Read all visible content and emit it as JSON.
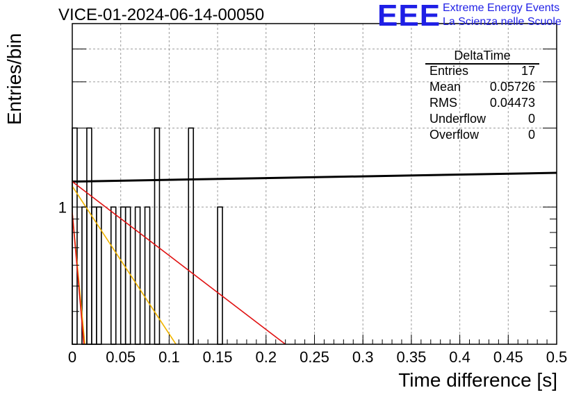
{
  "title": "VICE-01-2024-06-14-00050",
  "logo": {
    "mark": "EEE",
    "line1": "Extreme Energy Events",
    "line2": "La Scienza nelle Scuole",
    "color": "#1f1fe6"
  },
  "stats": {
    "title": "DeltaTime",
    "rows": [
      {
        "label": "Entries",
        "value": "17"
      },
      {
        "label": "Mean",
        "value": "0.05726"
      },
      {
        "label": "RMS",
        "value": "0.04473"
      },
      {
        "label": "Underflow",
        "value": "0"
      },
      {
        "label": "Overflow",
        "value": "0"
      }
    ]
  },
  "chart_data": {
    "type": "bar",
    "title": "VICE-01-2024-06-14-00050",
    "xlabel": "Time difference [s]",
    "ylabel": "Entries/bin",
    "xlim": [
      0,
      0.5
    ],
    "ylim": [
      0.3,
      5
    ],
    "yscale": "log",
    "grid": true,
    "xticks": [
      "0",
      "0.05",
      "0.1",
      "0.15",
      "0.2",
      "0.25",
      "0.3",
      "0.35",
      "0.4",
      "0.45",
      "0.5"
    ],
    "yticks": [
      "1"
    ],
    "bin_width": 0.005,
    "bins": [
      {
        "x": 0.0025,
        "count": 2
      },
      {
        "x": 0.0125,
        "count": 1
      },
      {
        "x": 0.0175,
        "count": 2
      },
      {
        "x": 0.0225,
        "count": 1
      },
      {
        "x": 0.0275,
        "count": 1
      },
      {
        "x": 0.0425,
        "count": 1
      },
      {
        "x": 0.0525,
        "count": 1
      },
      {
        "x": 0.0575,
        "count": 1
      },
      {
        "x": 0.0675,
        "count": 1
      },
      {
        "x": 0.0775,
        "count": 1
      },
      {
        "x": 0.0875,
        "count": 2
      },
      {
        "x": 0.1225,
        "count": 2
      },
      {
        "x": 0.1525,
        "count": 1
      }
    ],
    "fit_lines": [
      {
        "color": "#000000",
        "points": [
          [
            0.0,
            1.25
          ],
          [
            0.5,
            1.35
          ]
        ]
      },
      {
        "color": "#e01010",
        "points": [
          [
            0.0,
            1.25
          ],
          [
            0.22,
            0.3
          ]
        ]
      },
      {
        "color": "#f0b400",
        "points": [
          [
            0.0,
            1.2
          ],
          [
            0.107,
            0.3
          ]
        ]
      },
      {
        "color": "#f0b400",
        "points": [
          [
            0.0,
            0.95
          ],
          [
            0.013,
            0.3
          ]
        ]
      },
      {
        "color": "#e01010",
        "points": [
          [
            0.0,
            0.95
          ],
          [
            0.012,
            0.3
          ]
        ]
      }
    ]
  }
}
